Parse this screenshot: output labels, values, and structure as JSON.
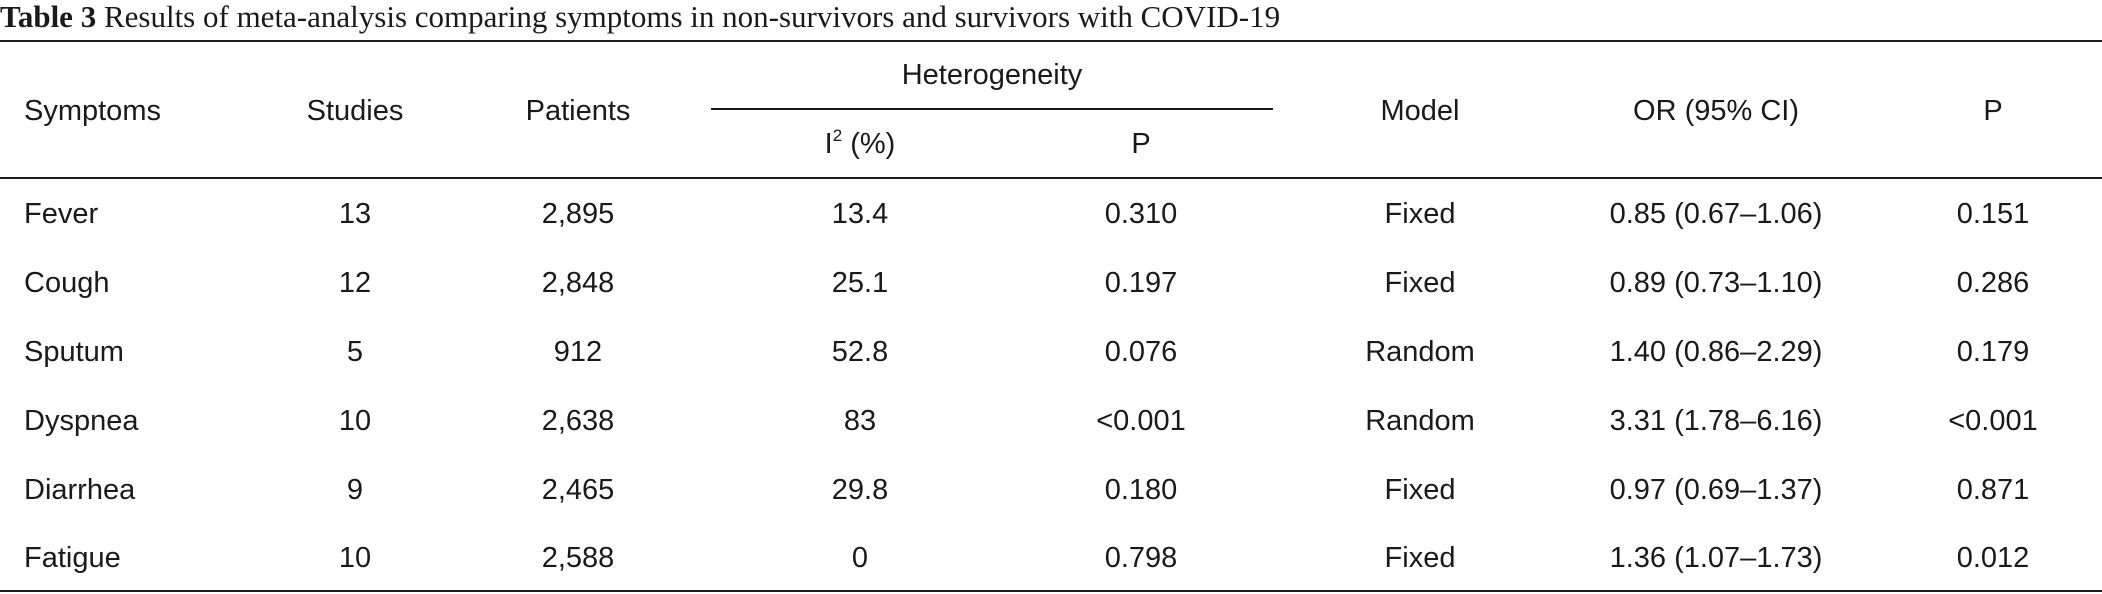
{
  "caption": {
    "label": "Table 3",
    "text": "Results of meta-analysis comparing symptoms in non-survivors and survivors with COVID-19"
  },
  "headers": {
    "symptoms": "Symptoms",
    "studies": "Studies",
    "patients": "Patients",
    "heterogeneity": "Heterogeneity",
    "i2_base": "I",
    "i2_sup": "2",
    "i2_unit": " (%)",
    "het_p": "P",
    "model": "Model",
    "or": "OR (95% CI)",
    "p": "P"
  },
  "rows": [
    {
      "symptom": "Fever",
      "studies": "13",
      "patients": "2,895",
      "i2": "13.4",
      "het_p": "0.310",
      "model": "Fixed",
      "or": "0.85 (0.67–1.06)",
      "p": "0.151"
    },
    {
      "symptom": "Cough",
      "studies": "12",
      "patients": "2,848",
      "i2": "25.1",
      "het_p": "0.197",
      "model": "Fixed",
      "or": "0.89 (0.73–1.10)",
      "p": "0.286"
    },
    {
      "symptom": "Sputum",
      "studies": "5",
      "patients": "912",
      "i2": "52.8",
      "het_p": "0.076",
      "model": "Random",
      "or": "1.40 (0.86–2.29)",
      "p": "0.179"
    },
    {
      "symptom": "Dyspnea",
      "studies": "10",
      "patients": "2,638",
      "i2": "83",
      "het_p": "<0.001",
      "model": "Random",
      "or": "3.31 (1.78–6.16)",
      "p": "<0.001"
    },
    {
      "symptom": "Diarrhea",
      "studies": "9",
      "patients": "2,465",
      "i2": "29.8",
      "het_p": "0.180",
      "model": "Fixed",
      "or": "0.97 (0.69–1.37)",
      "p": "0.871"
    },
    {
      "symptom": "Fatigue",
      "studies": "10",
      "patients": "2,588",
      "i2": "0",
      "het_p": "0.798",
      "model": "Fixed",
      "or": "1.36 (1.07–1.73)",
      "p": "0.012"
    }
  ]
}
